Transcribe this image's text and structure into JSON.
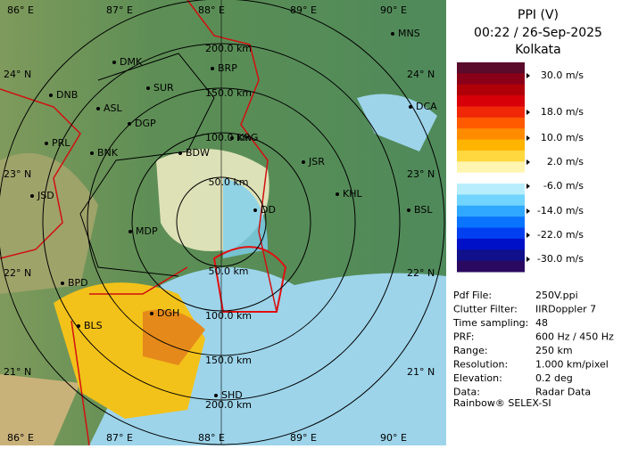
{
  "header": {
    "product": "PPI (V)",
    "time": "00:22 / 26-Sep-2025",
    "site": "Kolkata"
  },
  "legend": {
    "labels": [
      "30.0 m/s",
      "18.0 m/s",
      "10.0 m/s",
      "2.0 m/s",
      "-6.0 m/s",
      "-14.0 m/s",
      "-22.0 m/s",
      "-30.0 m/s"
    ]
  },
  "info": [
    [
      "Pdf File:",
      "250V.ppi"
    ],
    [
      "Clutter Filter:",
      "IIRDoppler 7"
    ],
    [
      "Time sampling:",
      "48"
    ],
    [
      "PRF:",
      "600 Hz / 450 Hz"
    ],
    [
      "Range:",
      "250 km"
    ],
    [
      "Resolution:",
      "1.000 km/pixel"
    ],
    [
      "Elevation:",
      "0.2 deg"
    ],
    [
      "Data:",
      "Radar Data"
    ]
  ],
  "footer": "Rainbow® SELEX-SI",
  "map": {
    "longitudes": [
      "86° E",
      "87° E",
      "88° E",
      "89° E",
      "90° E"
    ],
    "latitudes": [
      "24° N",
      "23° N",
      "22° N",
      "21° N"
    ],
    "ring_labels": [
      "50.0 km",
      "100.0 km",
      "150.0 km",
      "200.0 km"
    ],
    "cities": [
      "MNS",
      "DMK",
      "BRP",
      "SUR",
      "DNB",
      "ASL",
      "DGP",
      "DCA",
      "KRG",
      "PRL",
      "BNK",
      "BDW",
      "JSR",
      "KHL",
      "JSD",
      "DD",
      "BSL",
      "MDP",
      "BPD",
      "DGH",
      "BLS",
      "SHD"
    ]
  }
}
